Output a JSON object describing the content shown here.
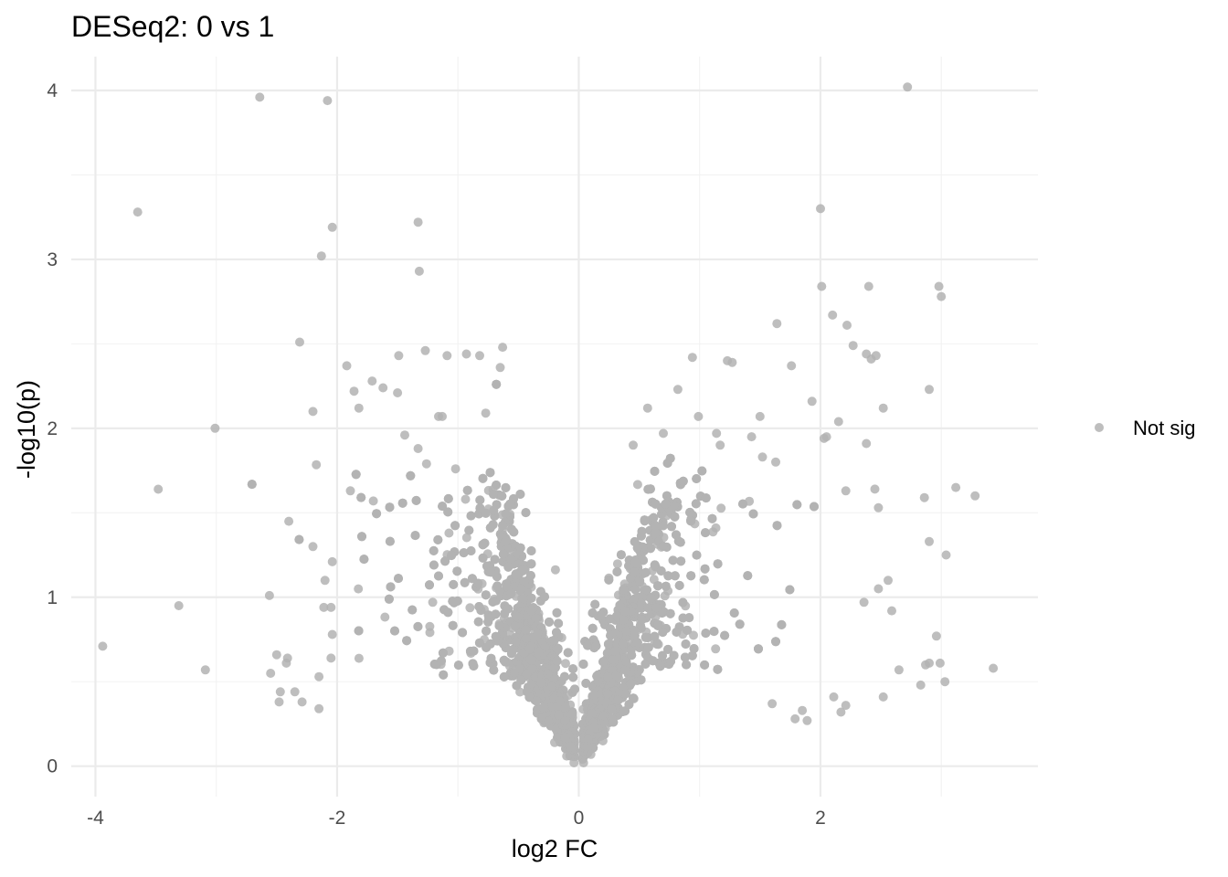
{
  "chart_data": {
    "type": "scatter",
    "title": "DESeq2: 0 vs 1",
    "xlabel": "log2 FC",
    "ylabel": "-log10(p)",
    "xlim": [
      -4.2,
      3.8
    ],
    "ylim": [
      -0.18,
      4.2
    ],
    "xticks": [
      -4,
      -2,
      0,
      2
    ],
    "xtick_labels": [
      "-4",
      "-2",
      "0",
      "2"
    ],
    "yticks": [
      0,
      1,
      2,
      3,
      4
    ],
    "ytick_labels": [
      "0",
      "1",
      "2",
      "3",
      "4"
    ],
    "grid": true,
    "legend": {
      "position": "right",
      "entries": [
        {
          "label": "Not sig",
          "color": "#b3b3b3"
        }
      ]
    },
    "series": [
      {
        "name": "Not sig",
        "color": "#b3b3b3",
        "approx_point_count": 9000,
        "points": [
          [
            2.72,
            4.02
          ],
          [
            -2.64,
            3.96
          ],
          [
            -2.08,
            3.94
          ],
          [
            -3.65,
            3.28
          ],
          [
            -1.33,
            3.22
          ],
          [
            2.0,
            3.3
          ],
          [
            -2.04,
            3.19
          ],
          [
            -2.13,
            3.02
          ],
          [
            -1.32,
            2.93
          ],
          [
            2.01,
            2.84
          ],
          [
            2.4,
            2.84
          ],
          [
            2.98,
            2.84
          ],
          [
            3.0,
            2.78
          ],
          [
            2.1,
            2.67
          ],
          [
            2.22,
            2.61
          ],
          [
            1.64,
            2.62
          ],
          [
            -2.31,
            2.51
          ],
          [
            2.27,
            2.49
          ],
          [
            2.38,
            2.44
          ],
          [
            2.46,
            2.43
          ],
          [
            2.42,
            2.41
          ],
          [
            -0.63,
            2.48
          ],
          [
            -1.27,
            2.46
          ],
          [
            -1.49,
            2.43
          ],
          [
            -1.09,
            2.43
          ],
          [
            -0.93,
            2.44
          ],
          [
            -0.82,
            2.43
          ],
          [
            0.94,
            2.42
          ],
          [
            1.23,
            2.4
          ],
          [
            1.27,
            2.39
          ],
          [
            1.76,
            2.37
          ],
          [
            -1.92,
            2.37
          ],
          [
            -0.65,
            2.36
          ],
          [
            -1.71,
            2.28
          ],
          [
            -1.62,
            2.24
          ],
          [
            2.9,
            2.23
          ],
          [
            -1.86,
            2.22
          ],
          [
            -1.5,
            2.21
          ],
          [
            0.82,
            2.23
          ],
          [
            1.93,
            2.16
          ],
          [
            2.52,
            2.12
          ],
          [
            0.57,
            2.12
          ],
          [
            -2.2,
            2.1
          ],
          [
            -1.82,
            2.12
          ],
          [
            1.5,
            2.07
          ],
          [
            0.99,
            2.07
          ],
          [
            -1.16,
            2.07
          ],
          [
            -0.77,
            2.09
          ],
          [
            -1.13,
            2.07
          ],
          [
            2.15,
            2.04
          ],
          [
            -3.01,
            2.0
          ],
          [
            0.7,
            1.97
          ],
          [
            1.14,
            1.97
          ],
          [
            2.05,
            1.95
          ],
          [
            2.03,
            1.94
          ],
          [
            1.43,
            1.95
          ],
          [
            -1.44,
            1.96
          ],
          [
            2.38,
            1.91
          ],
          [
            0.45,
            1.9
          ],
          [
            1.17,
            1.9
          ],
          [
            -1.33,
            1.88
          ],
          [
            -1.26,
            1.79
          ],
          [
            -1.02,
            1.76
          ],
          [
            1.63,
            1.8
          ],
          [
            1.52,
            1.83
          ],
          [
            -1.89,
            1.63
          ],
          [
            -1.7,
            1.57
          ],
          [
            2.45,
            1.64
          ],
          [
            2.86,
            1.59
          ],
          [
            3.12,
            1.65
          ],
          [
            3.28,
            1.6
          ],
          [
            2.21,
            1.63
          ],
          [
            2.48,
            1.53
          ],
          [
            -2.4,
            1.45
          ],
          [
            -2.2,
            1.3
          ],
          [
            -2.04,
            1.21
          ],
          [
            -2.1,
            1.1
          ],
          [
            -2.56,
            1.01
          ],
          [
            -3.31,
            0.95
          ],
          [
            -2.11,
            0.94
          ],
          [
            -2.05,
            0.94
          ],
          [
            -2.04,
            0.78
          ],
          [
            -3.94,
            0.71
          ],
          [
            -2.5,
            0.66
          ],
          [
            -2.41,
            0.64
          ],
          [
            -2.42,
            0.61
          ],
          [
            -2.05,
            0.64
          ],
          [
            -2.55,
            0.55
          ],
          [
            -3.09,
            0.57
          ],
          [
            -2.15,
            0.53
          ],
          [
            -2.47,
            0.44
          ],
          [
            -2.35,
            0.44
          ],
          [
            -2.48,
            0.38
          ],
          [
            -2.29,
            0.38
          ],
          [
            -2.15,
            0.34
          ],
          [
            3.04,
            1.25
          ],
          [
            2.9,
            1.33
          ],
          [
            2.56,
            1.1
          ],
          [
            2.48,
            1.05
          ],
          [
            2.36,
            0.97
          ],
          [
            2.59,
            0.92
          ],
          [
            2.96,
            0.77
          ],
          [
            2.9,
            0.61
          ],
          [
            2.99,
            0.61
          ],
          [
            3.43,
            0.58
          ],
          [
            2.65,
            0.57
          ],
          [
            2.87,
            0.6
          ],
          [
            3.03,
            0.5
          ],
          [
            2.83,
            0.48
          ],
          [
            2.52,
            0.41
          ],
          [
            2.21,
            0.36
          ],
          [
            2.17,
            0.32
          ],
          [
            2.11,
            0.41
          ],
          [
            1.89,
            0.27
          ],
          [
            1.85,
            0.33
          ],
          [
            1.79,
            0.28
          ],
          [
            1.6,
            0.37
          ],
          [
            -0.04,
            0.02
          ],
          [
            0.04,
            0.02
          ],
          [
            -0.1,
            0.06
          ],
          [
            0.1,
            0.07
          ],
          [
            -0.2,
            0.14
          ],
          [
            0.2,
            0.15
          ]
        ]
      }
    ]
  }
}
